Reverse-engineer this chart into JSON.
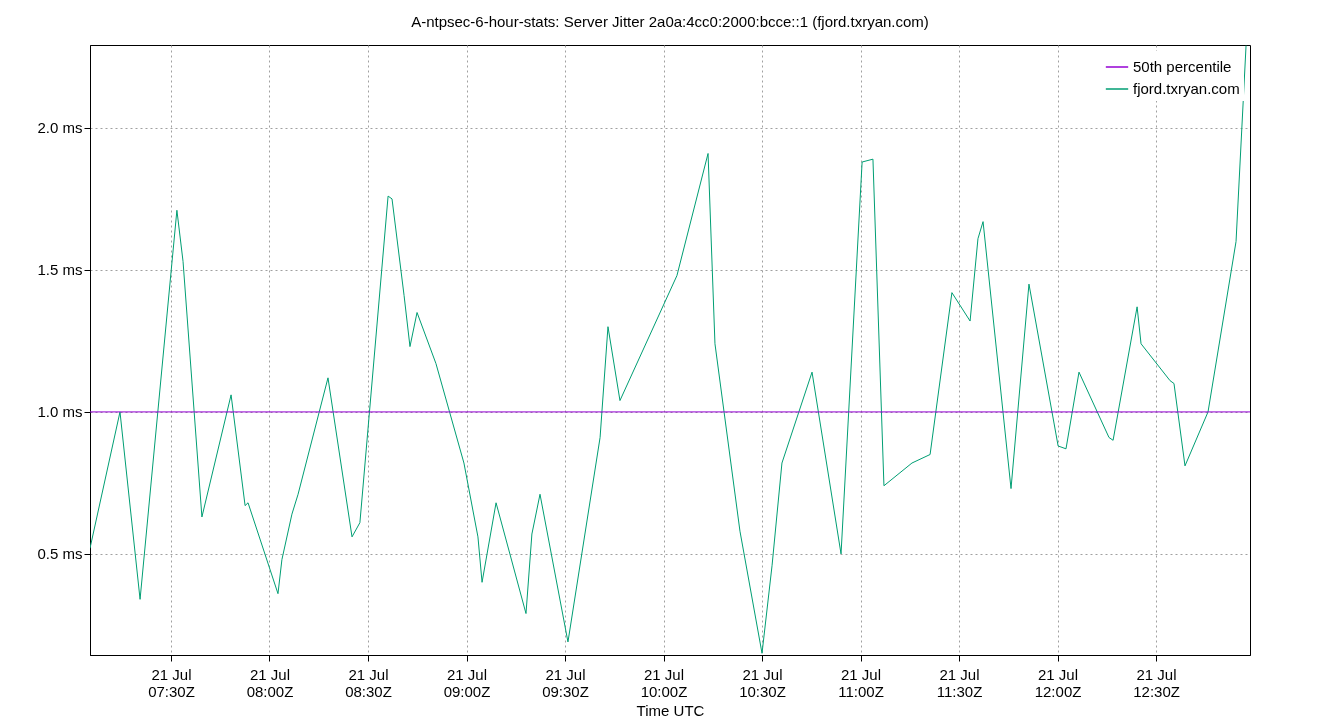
{
  "chart_data": {
    "type": "line",
    "title": "A-ntpsec-6-hour-stats: Server Jitter 2a0a:4cc0:2000:bcce::1 (fjord.txryan.com)",
    "xlabel": "Time UTC",
    "xlim": [
      "--07-21T07:05:20",
      "--07-21T12:58:37"
    ],
    "xticks": [
      {
        "value": "--07-21T07:30",
        "label": "21 Jul\n07:30Z"
      },
      {
        "value": "--07-21T08:00",
        "label": "21 Jul\n08:00Z"
      },
      {
        "value": "--07-21T08:30",
        "label": "21 Jul\n08:30Z"
      },
      {
        "value": "--07-21T09:00",
        "label": "21 Jul\n09:00Z"
      },
      {
        "value": "--07-21T09:30",
        "label": "21 Jul\n09:30Z"
      },
      {
        "value": "--07-21T10:00",
        "label": "21 Jul\n10:00Z"
      },
      {
        "value": "--07-21T10:30",
        "label": "21 Jul\n10:30Z"
      },
      {
        "value": "--07-21T11:00",
        "label": "21 Jul\n11:00Z"
      },
      {
        "value": "--07-21T11:30",
        "label": "21 Jul\n11:30Z"
      },
      {
        "value": "--07-21T12:00",
        "label": "21 Jul\n12:00Z"
      },
      {
        "value": "--07-21T12:30",
        "label": "21 Jul\n12:30Z"
      }
    ],
    "ylim": [
      0.144,
      2.292
    ],
    "yticks": [
      {
        "value": 0.5,
        "label": "0.5 ms"
      },
      {
        "value": 1,
        "label": "1.0 ms"
      },
      {
        "value": 1.5,
        "label": "1.5 ms"
      },
      {
        "value": 2,
        "label": "2.0 ms"
      }
    ],
    "grid": true,
    "legend": "top right",
    "series": [
      {
        "name": "50th percentile",
        "color": "#9400d3",
        "x": [
          "--07-21T07:05:20",
          "--07-21T12:58:37"
        ],
        "values": [
          1.0,
          1.0
        ]
      },
      {
        "name": "fjord.txryan.com",
        "color": "#009e73",
        "x": [
          "--07-21T07:05:20",
          "--07-21T07:14:28",
          "--07-21T07:20:35",
          "--07-21T07:31:48",
          "--07-21T07:33:40",
          "--07-21T07:39:25",
          "--07-21T07:48:18",
          "--07-21T07:52:34",
          "--07-21T07:53:28",
          "--07-21T08:02:35",
          "--07-21T08:03:47",
          "--07-21T08:06:50",
          "--07-21T08:08:42",
          "--07-21T08:17:49",
          "--07-21T08:25:08",
          "--07-21T08:27:32",
          "--07-21T08:36:07",
          "--07-21T08:37:19",
          "--07-21T08:40:59",
          "--07-21T08:42:47",
          "--07-21T08:44:56",
          "--07-21T08:50:42",
          "--07-21T08:59:13",
          "--07-21T09:03:29",
          "--07-21T09:04:44",
          "--07-21T09:09:00",
          "--07-21T09:18:07",
          "--07-21T09:19:55",
          "--07-21T09:22:23",
          "--07-21T09:30:54",
          "--07-21T09:40:41",
          "--07-21T09:43:05",
          "--07-21T09:46:44",
          "--07-21T10:04:05",
          "--07-21T10:13:34",
          "--07-21T10:15:40",
          "--07-21T10:23:17",
          "--07-21T10:30:00",
          "--07-21T10:33:04",
          "--07-21T10:36:04",
          "--07-21T10:45:14",
          "--07-21T10:54:04",
          "--07-21T11:00:29",
          "--07-21T11:03:47",
          "--07-21T11:07:08",
          "--07-21T11:15:40",
          "--07-21T11:21:11",
          "--07-21T11:27:50",
          "--07-21T11:33:22",
          "--07-21T11:35:46",
          "--07-21T11:37:19",
          "--07-21T11:45:50",
          "--07-21T11:51:18",
          "--07-21T12:00:11",
          "--07-21T12:02:35",
          "--07-21T12:06:32",
          "--07-21T12:15:40",
          "--07-21T12:16:55",
          "--07-21T12:24:14",
          "--07-21T12:25:26",
          "--07-21T12:34:16",
          "--07-21T12:35:28",
          "--07-21T12:38:49",
          "--07-21T12:45:50",
          "--07-21T12:54:22",
          "--07-21T12:57:25"
        ],
        "values": [
          0.52,
          1.0,
          0.34,
          1.71,
          1.53,
          0.63,
          1.06,
          0.67,
          0.68,
          0.36,
          0.48,
          0.64,
          0.71,
          1.12,
          0.56,
          0.61,
          1.76,
          1.75,
          1.41,
          1.23,
          1.35,
          1.17,
          0.82,
          0.56,
          0.4,
          0.68,
          0.29,
          0.57,
          0.71,
          0.19,
          0.91,
          1.3,
          1.04,
          1.48,
          1.91,
          1.24,
          0.58,
          0.15,
          0.46,
          0.82,
          1.14,
          0.5,
          1.88,
          1.89,
          0.74,
          0.82,
          0.85,
          1.42,
          1.32,
          1.61,
          1.67,
          0.73,
          1.45,
          0.88,
          0.87,
          1.14,
          0.91,
          0.9,
          1.37,
          1.24,
          1.11,
          1.1,
          0.81,
          1.0,
          1.6,
          2.29
        ]
      }
    ]
  }
}
